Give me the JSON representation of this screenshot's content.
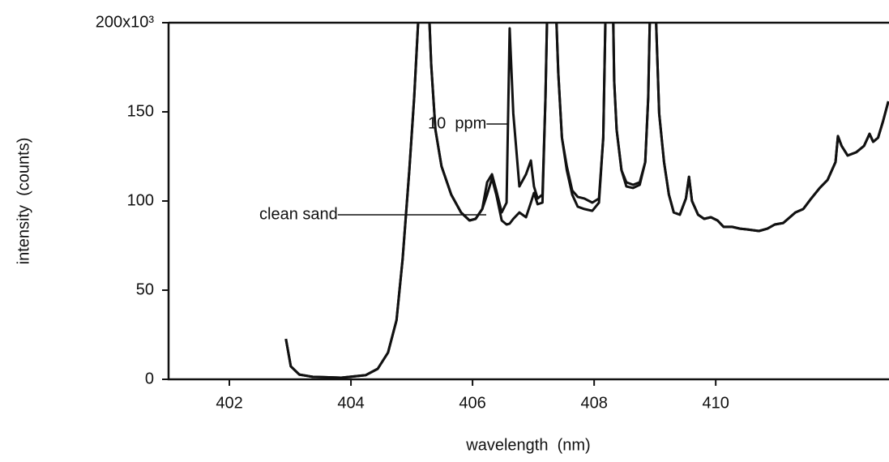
{
  "chart_data": {
    "type": "line",
    "xlabel": "wavelength  (nm)",
    "ylabel": "intensity  (counts)",
    "xlim": [
      401,
      412.85
    ],
    "ylim": [
      0,
      200
    ],
    "xticks": [
      402,
      404,
      406,
      408,
      410
    ],
    "yticks": [
      0,
      50,
      100,
      150,
      {
        "value": 200,
        "label": "200x10³"
      }
    ],
    "x": [
      402.93,
      403.01,
      403.15,
      403.37,
      403.84,
      404.24,
      404.44,
      404.61,
      404.75,
      404.85,
      404.96,
      405.04,
      405.09,
      405.12,
      405.28,
      405.32,
      405.39,
      405.49,
      405.65,
      405.81,
      405.95,
      406.05,
      406.16,
      406.24,
      406.32,
      406.39,
      406.48,
      406.56,
      406.61,
      406.67,
      406.77,
      406.88,
      406.96,
      407.01,
      407.07,
      407.15,
      407.2,
      407.23,
      407.37,
      407.41,
      407.47,
      407.55,
      407.64,
      407.73,
      407.84,
      407.97,
      408.08,
      408.15,
      408.19,
      408.31,
      408.33,
      408.37,
      408.45,
      408.53,
      408.64,
      408.75,
      408.84,
      408.89,
      408.92,
      409.01,
      409.07,
      409.15,
      409.23,
      409.31,
      409.41,
      409.51,
      409.56,
      409.61,
      409.71,
      409.81,
      409.92,
      410.03,
      410.13,
      410.27,
      410.4,
      410.51,
      410.71,
      410.85,
      410.97,
      411.11,
      411.31,
      411.44,
      411.57,
      411.71,
      411.84,
      411.97,
      412.01,
      412.07,
      412.17,
      412.31,
      412.44,
      412.53,
      412.59,
      412.67,
      412.75,
      412.84
    ],
    "series": [
      {
        "name": "clean sand",
        "color": "#111111",
        "values": [
          22.7,
          7.3,
          2.7,
          1.4,
          0.9,
          2.3,
          5.9,
          15,
          33.2,
          67.3,
          117.3,
          158.2,
          190,
          210,
          210,
          176.4,
          140,
          119.5,
          103.6,
          93.6,
          89.1,
          90,
          95.5,
          103.6,
          112.7,
          103.6,
          89.1,
          86.8,
          87.3,
          90,
          93.6,
          90.9,
          99.1,
          104.5,
          98.2,
          99.1,
          158.2,
          210,
          210,
          171.8,
          135.5,
          117.3,
          103.6,
          96.8,
          95.5,
          94.5,
          99.1,
          135.5,
          210,
          210,
          167.3,
          140,
          117.3,
          108.2,
          107.3,
          109.1,
          121.8,
          158.2,
          210,
          210,
          149.1,
          121.8,
          103.6,
          93.6,
          92.3,
          101.4,
          113.6,
          100,
          92.3,
          90,
          90.9,
          89.1,
          85.5,
          85.5,
          84.5,
          84.1,
          83.2,
          84.5,
          86.8,
          87.7,
          93.6,
          95.5,
          101.4,
          107.3,
          111.8,
          121.8,
          136.4,
          130.9,
          125.5,
          127.3,
          130.9,
          137.7,
          133.2,
          135.5,
          144.5,
          155.9
        ]
      },
      {
        "name": "10  ppm",
        "color": "#111111",
        "values": [
          22.7,
          7.3,
          2.7,
          1.4,
          0.9,
          2.3,
          5.9,
          15,
          33.2,
          67.3,
          117.3,
          158.2,
          190,
          210,
          210,
          176.4,
          140,
          119.5,
          103.6,
          93.6,
          89.1,
          90,
          95.5,
          110.5,
          115,
          105.9,
          93.6,
          99.1,
          196.8,
          149.1,
          108.2,
          115,
          122.7,
          108.2,
          101.4,
          103.6,
          158.2,
          210,
          210,
          171.8,
          135.5,
          119.5,
          105.9,
          102.3,
          101.4,
          99.1,
          101.4,
          135.5,
          210,
          210,
          167.3,
          140,
          117.3,
          110.5,
          109.1,
          110.5,
          121.8,
          158.2,
          210,
          210,
          149.1,
          121.8,
          103.6,
          93.6,
          92.3,
          101.4,
          113.6,
          100,
          92.3,
          90,
          90.9,
          89.1,
          85.5,
          85.5,
          84.5,
          84.1,
          83.2,
          84.5,
          86.8,
          87.7,
          93.6,
          95.5,
          101.4,
          107.3,
          111.8,
          121.8,
          136.4,
          130.9,
          125.5,
          127.3,
          130.9,
          137.7,
          133.2,
          135.5,
          144.5,
          155.9
        ]
      }
    ]
  }
}
